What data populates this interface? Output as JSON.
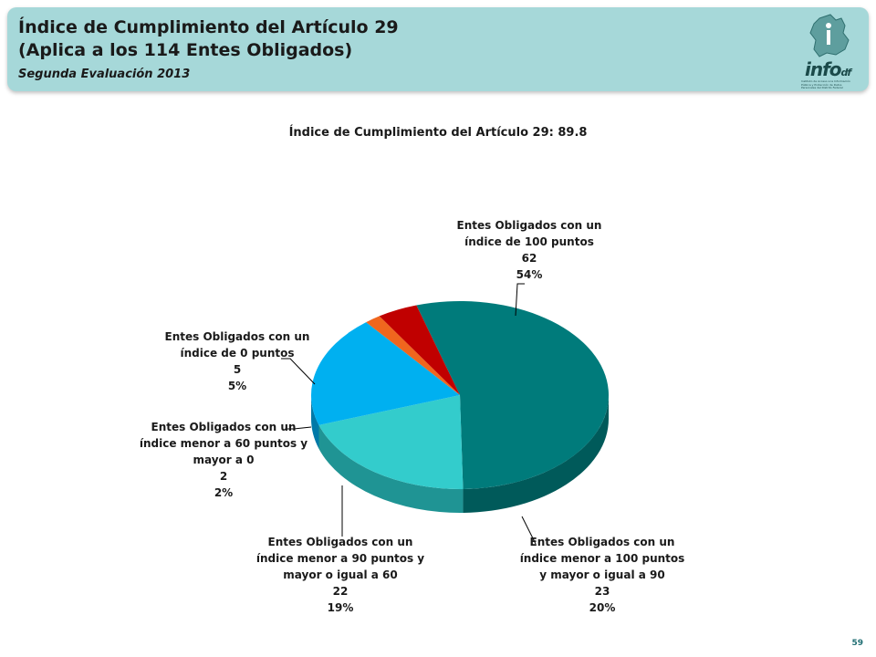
{
  "header": {
    "title_line1": "Índice de Cumplimiento del Artículo 29",
    "title_line2": "(Aplica a los 114 Entes Obligados)",
    "subtitle": "Segunda Evaluación 2013",
    "logo_text": "info",
    "logo_small": "df",
    "logo_caption": "Instituto de Acceso a la Información Pública y Protección de Datos Personales del Distrito Federal"
  },
  "chart_data": {
    "type": "pie",
    "title": "Índice de Cumplimiento del Artículo 29: 89.8",
    "slices": [
      {
        "label_lines": [
          "Entes Obligados con un",
          "índice de 100 puntos"
        ],
        "value": 62,
        "percent": "54%",
        "color": "#007b7b",
        "side": "#005a5a"
      },
      {
        "label_lines": [
          "Entes Obligados con un",
          "índice  menor a 100  puntos",
          "y mayor o igual a 90"
        ],
        "value": 23,
        "percent": "20%",
        "color": "#33cccc",
        "side": "#1f9494"
      },
      {
        "label_lines": [
          "Entes Obligados con un",
          "índice menor a 90 puntos y",
          "mayor o igual a 60"
        ],
        "value": 22,
        "percent": "19%",
        "color": "#00b0f0",
        "side": "#0079a8"
      },
      {
        "label_lines": [
          "Entes Obligados con un",
          "índice menor a 60 puntos y",
          "mayor a 0"
        ],
        "value": 2,
        "percent": "2%",
        "color": "#f0661e",
        "side": "#b44612"
      },
      {
        "label_lines": [
          "Entes Obligados con un",
          "índice de 0 puntos"
        ],
        "value": 5,
        "percent": "5%",
        "color": "#c00000",
        "side": "#800000"
      }
    ]
  },
  "page_number": "59"
}
